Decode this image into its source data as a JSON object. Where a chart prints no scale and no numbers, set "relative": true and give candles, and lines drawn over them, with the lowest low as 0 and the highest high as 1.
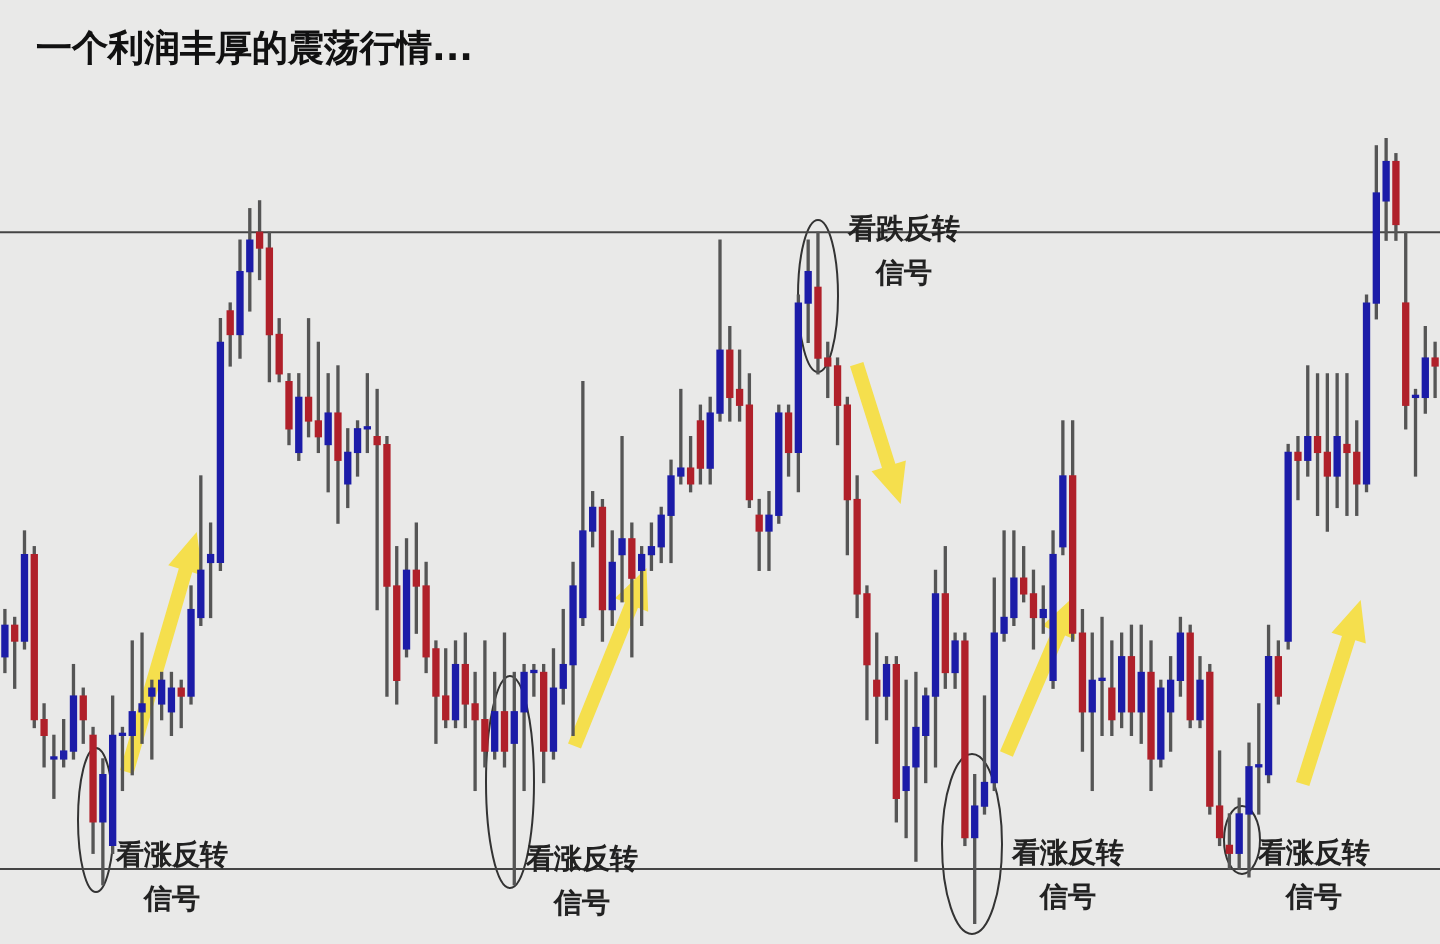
{
  "chart_data": {
    "type": "candlestick",
    "title": "一个利润丰厚的震荡行情...",
    "relative": true,
    "legend": false,
    "tick_labels": false,
    "categories": [
      null,
      null,
      null,
      null,
      null,
      null,
      null,
      null,
      null,
      null,
      null,
      null,
      null,
      null,
      null,
      null,
      null,
      null,
      null,
      null,
      null,
      null,
      null,
      null,
      null,
      null,
      null,
      null,
      null,
      null,
      null,
      null,
      null,
      null,
      null,
      null,
      null,
      null,
      null,
      null,
      null,
      null,
      null,
      null,
      null,
      null,
      null,
      null,
      null,
      null,
      null,
      null,
      null,
      null,
      null,
      null,
      null,
      null,
      null,
      null,
      null,
      null,
      null,
      null,
      null,
      null,
      null,
      null,
      null,
      null,
      null,
      null,
      null,
      null,
      null,
      null,
      null,
      null,
      null,
      null,
      null,
      null,
      null,
      null,
      null,
      null,
      null,
      null,
      null,
      null,
      null,
      null,
      null,
      null,
      null,
      null,
      null,
      null,
      null,
      null,
      null,
      null,
      null,
      null,
      null,
      null,
      null,
      null,
      null,
      null,
      null,
      null,
      null,
      null,
      null,
      null,
      null,
      null,
      null,
      null,
      null,
      null,
      null,
      null,
      null,
      null,
      null,
      null,
      null,
      null,
      null,
      null,
      null,
      null,
      null,
      null,
      null,
      null,
      null,
      null,
      null,
      null,
      null,
      null,
      null,
      null,
      null
    ],
    "ohlc": [
      [
        0.34,
        0.4,
        0.32,
        0.38
      ],
      [
        0.38,
        0.39,
        0.3,
        0.36
      ],
      [
        0.36,
        0.5,
        0.35,
        0.47
      ],
      [
        0.47,
        0.48,
        0.25,
        0.26
      ],
      [
        0.26,
        0.28,
        0.2,
        0.24
      ],
      [
        0.21,
        0.24,
        0.16,
        0.21
      ],
      [
        0.21,
        0.26,
        0.2,
        0.22
      ],
      [
        0.22,
        0.33,
        0.21,
        0.29
      ],
      [
        0.29,
        0.3,
        0.23,
        0.26
      ],
      [
        0.24,
        0.25,
        0.09,
        0.13
      ],
      [
        0.13,
        0.21,
        0.05,
        0.19
      ],
      [
        0.1,
        0.29,
        0.09,
        0.24
      ],
      [
        0.24,
        0.25,
        0.17,
        0.24
      ],
      [
        0.24,
        0.36,
        0.19,
        0.27
      ],
      [
        0.27,
        0.37,
        0.23,
        0.28
      ],
      [
        0.29,
        0.31,
        0.21,
        0.3
      ],
      [
        0.28,
        0.32,
        0.26,
        0.31
      ],
      [
        0.27,
        0.32,
        0.24,
        0.3
      ],
      [
        0.3,
        0.31,
        0.25,
        0.29
      ],
      [
        0.29,
        0.43,
        0.28,
        0.4
      ],
      [
        0.39,
        0.57,
        0.38,
        0.45
      ],
      [
        0.46,
        0.51,
        0.39,
        0.47
      ],
      [
        0.46,
        0.77,
        0.45,
        0.74
      ],
      [
        0.78,
        0.79,
        0.71,
        0.75
      ],
      [
        0.75,
        0.87,
        0.72,
        0.83
      ],
      [
        0.83,
        0.91,
        0.78,
        0.87
      ],
      [
        0.88,
        0.92,
        0.82,
        0.86
      ],
      [
        0.86,
        0.88,
        0.69,
        0.75
      ],
      [
        0.75,
        0.77,
        0.69,
        0.7
      ],
      [
        0.69,
        0.7,
        0.61,
        0.63
      ],
      [
        0.6,
        0.7,
        0.59,
        0.67
      ],
      [
        0.67,
        0.77,
        0.62,
        0.64
      ],
      [
        0.64,
        0.74,
        0.6,
        0.62
      ],
      [
        0.61,
        0.7,
        0.55,
        0.65
      ],
      [
        0.65,
        0.71,
        0.51,
        0.59
      ],
      [
        0.56,
        0.63,
        0.53,
        0.6
      ],
      [
        0.6,
        0.64,
        0.57,
        0.63
      ],
      [
        0.63,
        0.7,
        0.6,
        0.63
      ],
      [
        0.62,
        0.68,
        0.4,
        0.61
      ],
      [
        0.61,
        0.62,
        0.29,
        0.43
      ],
      [
        0.43,
        0.48,
        0.28,
        0.31
      ],
      [
        0.35,
        0.49,
        0.34,
        0.45
      ],
      [
        0.45,
        0.51,
        0.37,
        0.43
      ],
      [
        0.43,
        0.46,
        0.32,
        0.34
      ],
      [
        0.35,
        0.36,
        0.23,
        0.29
      ],
      [
        0.29,
        0.35,
        0.25,
        0.26
      ],
      [
        0.26,
        0.36,
        0.25,
        0.33
      ],
      [
        0.33,
        0.37,
        0.25,
        0.28
      ],
      [
        0.28,
        0.32,
        0.17,
        0.26
      ],
      [
        0.26,
        0.36,
        0.2,
        0.22
      ],
      [
        0.22,
        0.32,
        0.21,
        0.27
      ],
      [
        0.27,
        0.37,
        0.2,
        0.22
      ],
      [
        0.23,
        0.32,
        0.05,
        0.27
      ],
      [
        0.27,
        0.33,
        0.17,
        0.32
      ],
      [
        0.32,
        0.33,
        0.29,
        0.32
      ],
      [
        0.32,
        0.33,
        0.18,
        0.22
      ],
      [
        0.22,
        0.35,
        0.21,
        0.3
      ],
      [
        0.3,
        0.4,
        0.28,
        0.33
      ],
      [
        0.33,
        0.46,
        0.24,
        0.43
      ],
      [
        0.39,
        0.69,
        0.38,
        0.5
      ],
      [
        0.5,
        0.55,
        0.48,
        0.53
      ],
      [
        0.53,
        0.54,
        0.36,
        0.4
      ],
      [
        0.4,
        0.5,
        0.38,
        0.46
      ],
      [
        0.47,
        0.62,
        0.41,
        0.49
      ],
      [
        0.49,
        0.51,
        0.34,
        0.44
      ],
      [
        0.45,
        0.48,
        0.38,
        0.47
      ],
      [
        0.47,
        0.51,
        0.45,
        0.48
      ],
      [
        0.48,
        0.53,
        0.46,
        0.52
      ],
      [
        0.52,
        0.59,
        0.46,
        0.57
      ],
      [
        0.57,
        0.68,
        0.56,
        0.58
      ],
      [
        0.58,
        0.62,
        0.55,
        0.56
      ],
      [
        0.64,
        0.66,
        0.56,
        0.58
      ],
      [
        0.58,
        0.67,
        0.56,
        0.65
      ],
      [
        0.65,
        0.87,
        0.64,
        0.73
      ],
      [
        0.73,
        0.76,
        0.64,
        0.67
      ],
      [
        0.68,
        0.73,
        0.64,
        0.66
      ],
      [
        0.66,
        0.7,
        0.53,
        0.54
      ],
      [
        0.52,
        0.54,
        0.45,
        0.5
      ],
      [
        0.5,
        0.55,
        0.45,
        0.52
      ],
      [
        0.52,
        0.66,
        0.51,
        0.65
      ],
      [
        0.65,
        0.66,
        0.57,
        0.6
      ],
      [
        0.6,
        0.8,
        0.55,
        0.79
      ],
      [
        0.79,
        0.87,
        0.74,
        0.83
      ],
      [
        0.81,
        0.88,
        0.7,
        0.72
      ],
      [
        0.72,
        0.74,
        0.67,
        0.71
      ],
      [
        0.71,
        0.72,
        0.61,
        0.66
      ],
      [
        0.66,
        0.67,
        0.47,
        0.54
      ],
      [
        0.54,
        0.57,
        0.39,
        0.42
      ],
      [
        0.42,
        0.43,
        0.26,
        0.33
      ],
      [
        0.31,
        0.37,
        0.23,
        0.29
      ],
      [
        0.29,
        0.34,
        0.26,
        0.33
      ],
      [
        0.33,
        0.34,
        0.13,
        0.16
      ],
      [
        0.17,
        0.31,
        0.11,
        0.2
      ],
      [
        0.2,
        0.32,
        0.08,
        0.25
      ],
      [
        0.24,
        0.3,
        0.18,
        0.29
      ],
      [
        0.29,
        0.45,
        0.2,
        0.42
      ],
      [
        0.42,
        0.48,
        0.3,
        0.32
      ],
      [
        0.32,
        0.37,
        0.3,
        0.36
      ],
      [
        0.36,
        0.37,
        0.1,
        0.11
      ],
      [
        0.11,
        0.19,
        0,
        0.15
      ],
      [
        0.15,
        0.29,
        0.14,
        0.18
      ],
      [
        0.18,
        0.44,
        0.17,
        0.37
      ],
      [
        0.37,
        0.5,
        0.36,
        0.39
      ],
      [
        0.39,
        0.5,
        0.38,
        0.44
      ],
      [
        0.44,
        0.48,
        0.41,
        0.42
      ],
      [
        0.42,
        0.45,
        0.35,
        0.39
      ],
      [
        0.39,
        0.43,
        0.37,
        0.4
      ],
      [
        0.31,
        0.5,
        0.3,
        0.47
      ],
      [
        0.48,
        0.64,
        0.47,
        0.57
      ],
      [
        0.57,
        0.64,
        0.36,
        0.37
      ],
      [
        0.37,
        0.4,
        0.22,
        0.27
      ],
      [
        0.27,
        0.37,
        0.17,
        0.31
      ],
      [
        0.31,
        0.39,
        0.24,
        0.31
      ],
      [
        0.3,
        0.36,
        0.24,
        0.26
      ],
      [
        0.27,
        0.37,
        0.25,
        0.34
      ],
      [
        0.34,
        0.38,
        0.24,
        0.27
      ],
      [
        0.27,
        0.38,
        0.23,
        0.32
      ],
      [
        0.32,
        0.36,
        0.17,
        0.21
      ],
      [
        0.21,
        0.31,
        0.2,
        0.3
      ],
      [
        0.27,
        0.34,
        0.22,
        0.31
      ],
      [
        0.31,
        0.39,
        0.29,
        0.37
      ],
      [
        0.37,
        0.38,
        0.25,
        0.26
      ],
      [
        0.26,
        0.34,
        0.25,
        0.31
      ],
      [
        0.32,
        0.33,
        0.14,
        0.15
      ],
      [
        0.15,
        0.22,
        0.1,
        0.11
      ],
      [
        0.1,
        0.14,
        0.07,
        0.09
      ],
      [
        0.09,
        0.16,
        0.07,
        0.14
      ],
      [
        0.14,
        0.23,
        0.06,
        0.2
      ],
      [
        0.2,
        0.28,
        0.14,
        0.2
      ],
      [
        0.19,
        0.38,
        0.18,
        0.34
      ],
      [
        0.34,
        0.36,
        0.28,
        0.29
      ],
      [
        0.36,
        0.61,
        0.35,
        0.6
      ],
      [
        0.6,
        0.62,
        0.54,
        0.59
      ],
      [
        0.59,
        0.71,
        0.57,
        0.62
      ],
      [
        0.62,
        0.7,
        0.52,
        0.6
      ],
      [
        0.6,
        0.7,
        0.5,
        0.57
      ],
      [
        0.57,
        0.7,
        0.53,
        0.62
      ],
      [
        0.61,
        0.7,
        0.52,
        0.6
      ],
      [
        0.6,
        0.64,
        0.52,
        0.56
      ],
      [
        0.56,
        0.8,
        0.55,
        0.79
      ],
      [
        0.79,
        0.99,
        0.77,
        0.93
      ],
      [
        0.92,
        1,
        0.87,
        0.97
      ],
      [
        0.97,
        0.98,
        0.87,
        0.89
      ],
      [
        0.79,
        0.88,
        0.63,
        0.66
      ],
      [
        0.67,
        0.68,
        0.57,
        0.67
      ],
      [
        0.67,
        0.76,
        0.65,
        0.72
      ],
      [
        0.72,
        0.74,
        0.67,
        0.71
      ]
    ],
    "colors": [
      "#1c1ca8",
      "#b0202a",
      "#1c1ca8",
      "#b0202a",
      "#b0202a",
      "#1c1ca8",
      "#1c1ca8",
      "#1c1ca8",
      "#b0202a",
      "#b0202a",
      "#1c1ca8",
      "#1c1ca8",
      "#1c1ca8",
      "#1c1ca8",
      "#1c1ca8",
      "#1c1ca8",
      "#1c1ca8",
      "#1c1ca8",
      "#b0202a",
      "#1c1ca8",
      "#1c1ca8",
      "#1c1ca8",
      "#1c1ca8",
      "#b0202a",
      "#1c1ca8",
      "#1c1ca8",
      "#b0202a",
      "#b0202a",
      "#b0202a",
      "#b0202a",
      "#1c1ca8",
      "#b0202a",
      "#b0202a",
      "#1c1ca8",
      "#b0202a",
      "#1c1ca8",
      "#1c1ca8",
      "#1c1ca8",
      "#b0202a",
      "#b0202a",
      "#b0202a",
      "#1c1ca8",
      "#b0202a",
      "#b0202a",
      "#b0202a",
      "#b0202a",
      "#1c1ca8",
      "#b0202a",
      "#b0202a",
      "#b0202a",
      "#1c1ca8",
      "#b0202a",
      "#1c1ca8",
      "#1c1ca8",
      "#1c1ca8",
      "#b0202a",
      "#1c1ca8",
      "#1c1ca8",
      "#1c1ca8",
      "#1c1ca8",
      "#1c1ca8",
      "#b0202a",
      "#1c1ca8",
      "#1c1ca8",
      "#b0202a",
      "#1c1ca8",
      "#1c1ca8",
      "#1c1ca8",
      "#1c1ca8",
      "#1c1ca8",
      "#b0202a",
      "#b0202a",
      "#1c1ca8",
      "#1c1ca8",
      "#b0202a",
      "#b0202a",
      "#b0202a",
      "#b0202a",
      "#1c1ca8",
      "#1c1ca8",
      "#b0202a",
      "#1c1ca8",
      "#1c1ca8",
      "#b0202a",
      "#b0202a",
      "#b0202a",
      "#b0202a",
      "#b0202a",
      "#b0202a",
      "#b0202a",
      "#1c1ca8",
      "#b0202a",
      "#1c1ca8",
      "#1c1ca8",
      "#1c1ca8",
      "#1c1ca8",
      "#b0202a",
      "#1c1ca8",
      "#b0202a",
      "#1c1ca8",
      "#1c1ca8",
      "#1c1ca8",
      "#1c1ca8",
      "#1c1ca8",
      "#b0202a",
      "#b0202a",
      "#1c1ca8",
      "#1c1ca8",
      "#1c1ca8",
      "#b0202a",
      "#b0202a",
      "#1c1ca8",
      "#1c1ca8",
      "#b0202a",
      "#1c1ca8",
      "#b0202a",
      "#1c1ca8",
      "#b0202a",
      "#1c1ca8",
      "#1c1ca8",
      "#1c1ca8",
      "#b0202a",
      "#1c1ca8",
      "#b0202a",
      "#b0202a",
      "#b0202a",
      "#1c1ca8",
      "#1c1ca8",
      "#1c1ca8",
      "#1c1ca8",
      "#b0202a",
      "#1c1ca8",
      "#b0202a",
      "#1c1ca8",
      "#b0202a",
      "#b0202a",
      "#1c1ca8",
      "#b0202a",
      "#b0202a",
      "#1c1ca8",
      "#1c1ca8",
      "#1c1ca8",
      "#b0202a",
      "#b0202a",
      "#1c1ca8",
      "#1c1ca8",
      "#b0202a"
    ],
    "ref_lines": [
      {
        "axis": "y",
        "value": 0.88,
        "color": "#444444"
      },
      {
        "axis": "y",
        "value": 0.07,
        "color": "#444444"
      }
    ],
    "annotations": [
      "看涨反转信号",
      "看涨反转信号",
      "看跌反转信号",
      "看涨反转信号",
      "看涨反转信号"
    ]
  }
}
